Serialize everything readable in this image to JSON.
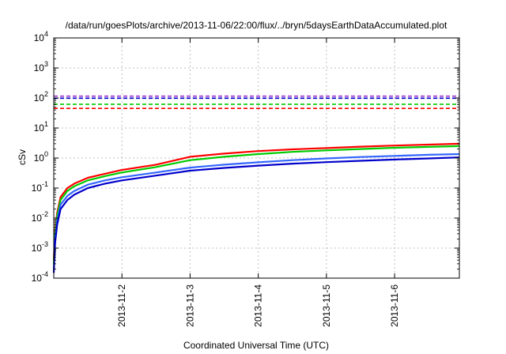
{
  "chart_data": {
    "type": "line",
    "title": "/data/run/goesPlots/archive/2013-11-06/22:00/flux/../bryn/5daysEarthDataAccumulated.plot",
    "xlabel": "Coordinated Universal Time (UTC)",
    "ylabel": "cSv",
    "yscale": "log",
    "ylim": [
      0.0001,
      10000
    ],
    "xlim": [
      0,
      5.95
    ],
    "x_unit": "days since 2013-11-01 00:00 UTC",
    "grid": true,
    "x_tick_labels": [
      {
        "x": 1,
        "label": "2013-11-2"
      },
      {
        "x": 2,
        "label": "2013-11-3"
      },
      {
        "x": 3,
        "label": "2013-11-4"
      },
      {
        "x": 4,
        "label": "2013-11-5"
      },
      {
        "x": 5,
        "label": "2013-11-6"
      }
    ],
    "y_ticks": [
      {
        "value": 0.0001,
        "exp": "-4"
      },
      {
        "value": 0.001,
        "exp": "-3"
      },
      {
        "value": 0.01,
        "exp": "-2"
      },
      {
        "value": 0.1,
        "exp": "-1"
      },
      {
        "value": 1,
        "exp": "0"
      },
      {
        "value": 10,
        "exp": "1"
      },
      {
        "value": 100,
        "exp": "2"
      },
      {
        "value": 1000,
        "exp": "3"
      },
      {
        "value": 10000,
        "exp": "4"
      }
    ],
    "tick_base": "10",
    "series": [
      {
        "color": "#ff0000",
        "dashed": false,
        "x": [
          0,
          0.02,
          0.05,
          0.1,
          0.2,
          0.3,
          0.5,
          0.75,
          1,
          1.5,
          2,
          2.5,
          3,
          3.5,
          4,
          4.5,
          5,
          5.5,
          5.95
        ],
        "y": [
          0.0004,
          0.004,
          0.015,
          0.05,
          0.1,
          0.14,
          0.22,
          0.3,
          0.4,
          0.6,
          1.1,
          1.4,
          1.7,
          1.95,
          2.15,
          2.4,
          2.6,
          2.8,
          3.0
        ]
      },
      {
        "color": "#00cc00",
        "dashed": false,
        "x": [
          0,
          0.02,
          0.05,
          0.1,
          0.2,
          0.3,
          0.5,
          0.75,
          1,
          1.5,
          2,
          2.5,
          3,
          3.5,
          4,
          4.5,
          5,
          5.5,
          5.95
        ],
        "y": [
          0.0003,
          0.003,
          0.012,
          0.04,
          0.08,
          0.115,
          0.18,
          0.25,
          0.33,
          0.5,
          0.85,
          1.1,
          1.35,
          1.6,
          1.8,
          2.0,
          2.2,
          2.35,
          2.5
        ]
      },
      {
        "color": "#3366ff",
        "dashed": false,
        "x": [
          0,
          0.02,
          0.05,
          0.1,
          0.2,
          0.3,
          0.5,
          0.75,
          1,
          1.5,
          2,
          2.5,
          3,
          3.5,
          4,
          4.5,
          5,
          5.5,
          5.95
        ],
        "y": [
          0.0002,
          0.002,
          0.008,
          0.028,
          0.055,
          0.08,
          0.13,
          0.18,
          0.23,
          0.33,
          0.48,
          0.6,
          0.72,
          0.85,
          0.97,
          1.08,
          1.18,
          1.28,
          1.35
        ]
      },
      {
        "color": "#0000cc",
        "dashed": false,
        "x": [
          0,
          0.02,
          0.05,
          0.1,
          0.2,
          0.3,
          0.5,
          0.75,
          1,
          1.5,
          2,
          2.5,
          3,
          3.5,
          4,
          4.5,
          5,
          5.5,
          5.95
        ],
        "y": [
          0.00015,
          0.0015,
          0.006,
          0.02,
          0.04,
          0.06,
          0.1,
          0.14,
          0.18,
          0.26,
          0.38,
          0.47,
          0.56,
          0.65,
          0.73,
          0.81,
          0.89,
          0.97,
          1.05
        ]
      },
      {
        "color": "#9933cc",
        "dashed": true,
        "x": [
          0,
          5.95
        ],
        "y": [
          115,
          115
        ]
      },
      {
        "color": "#0000cc",
        "dashed": true,
        "x": [
          0,
          5.95
        ],
        "y": [
          98,
          98
        ]
      },
      {
        "color": "#00cc00",
        "dashed": true,
        "x": [
          0,
          5.95
        ],
        "y": [
          62,
          62
        ]
      },
      {
        "color": "#ff0000",
        "dashed": true,
        "x": [
          0,
          5.95
        ],
        "y": [
          45,
          45
        ]
      }
    ]
  }
}
